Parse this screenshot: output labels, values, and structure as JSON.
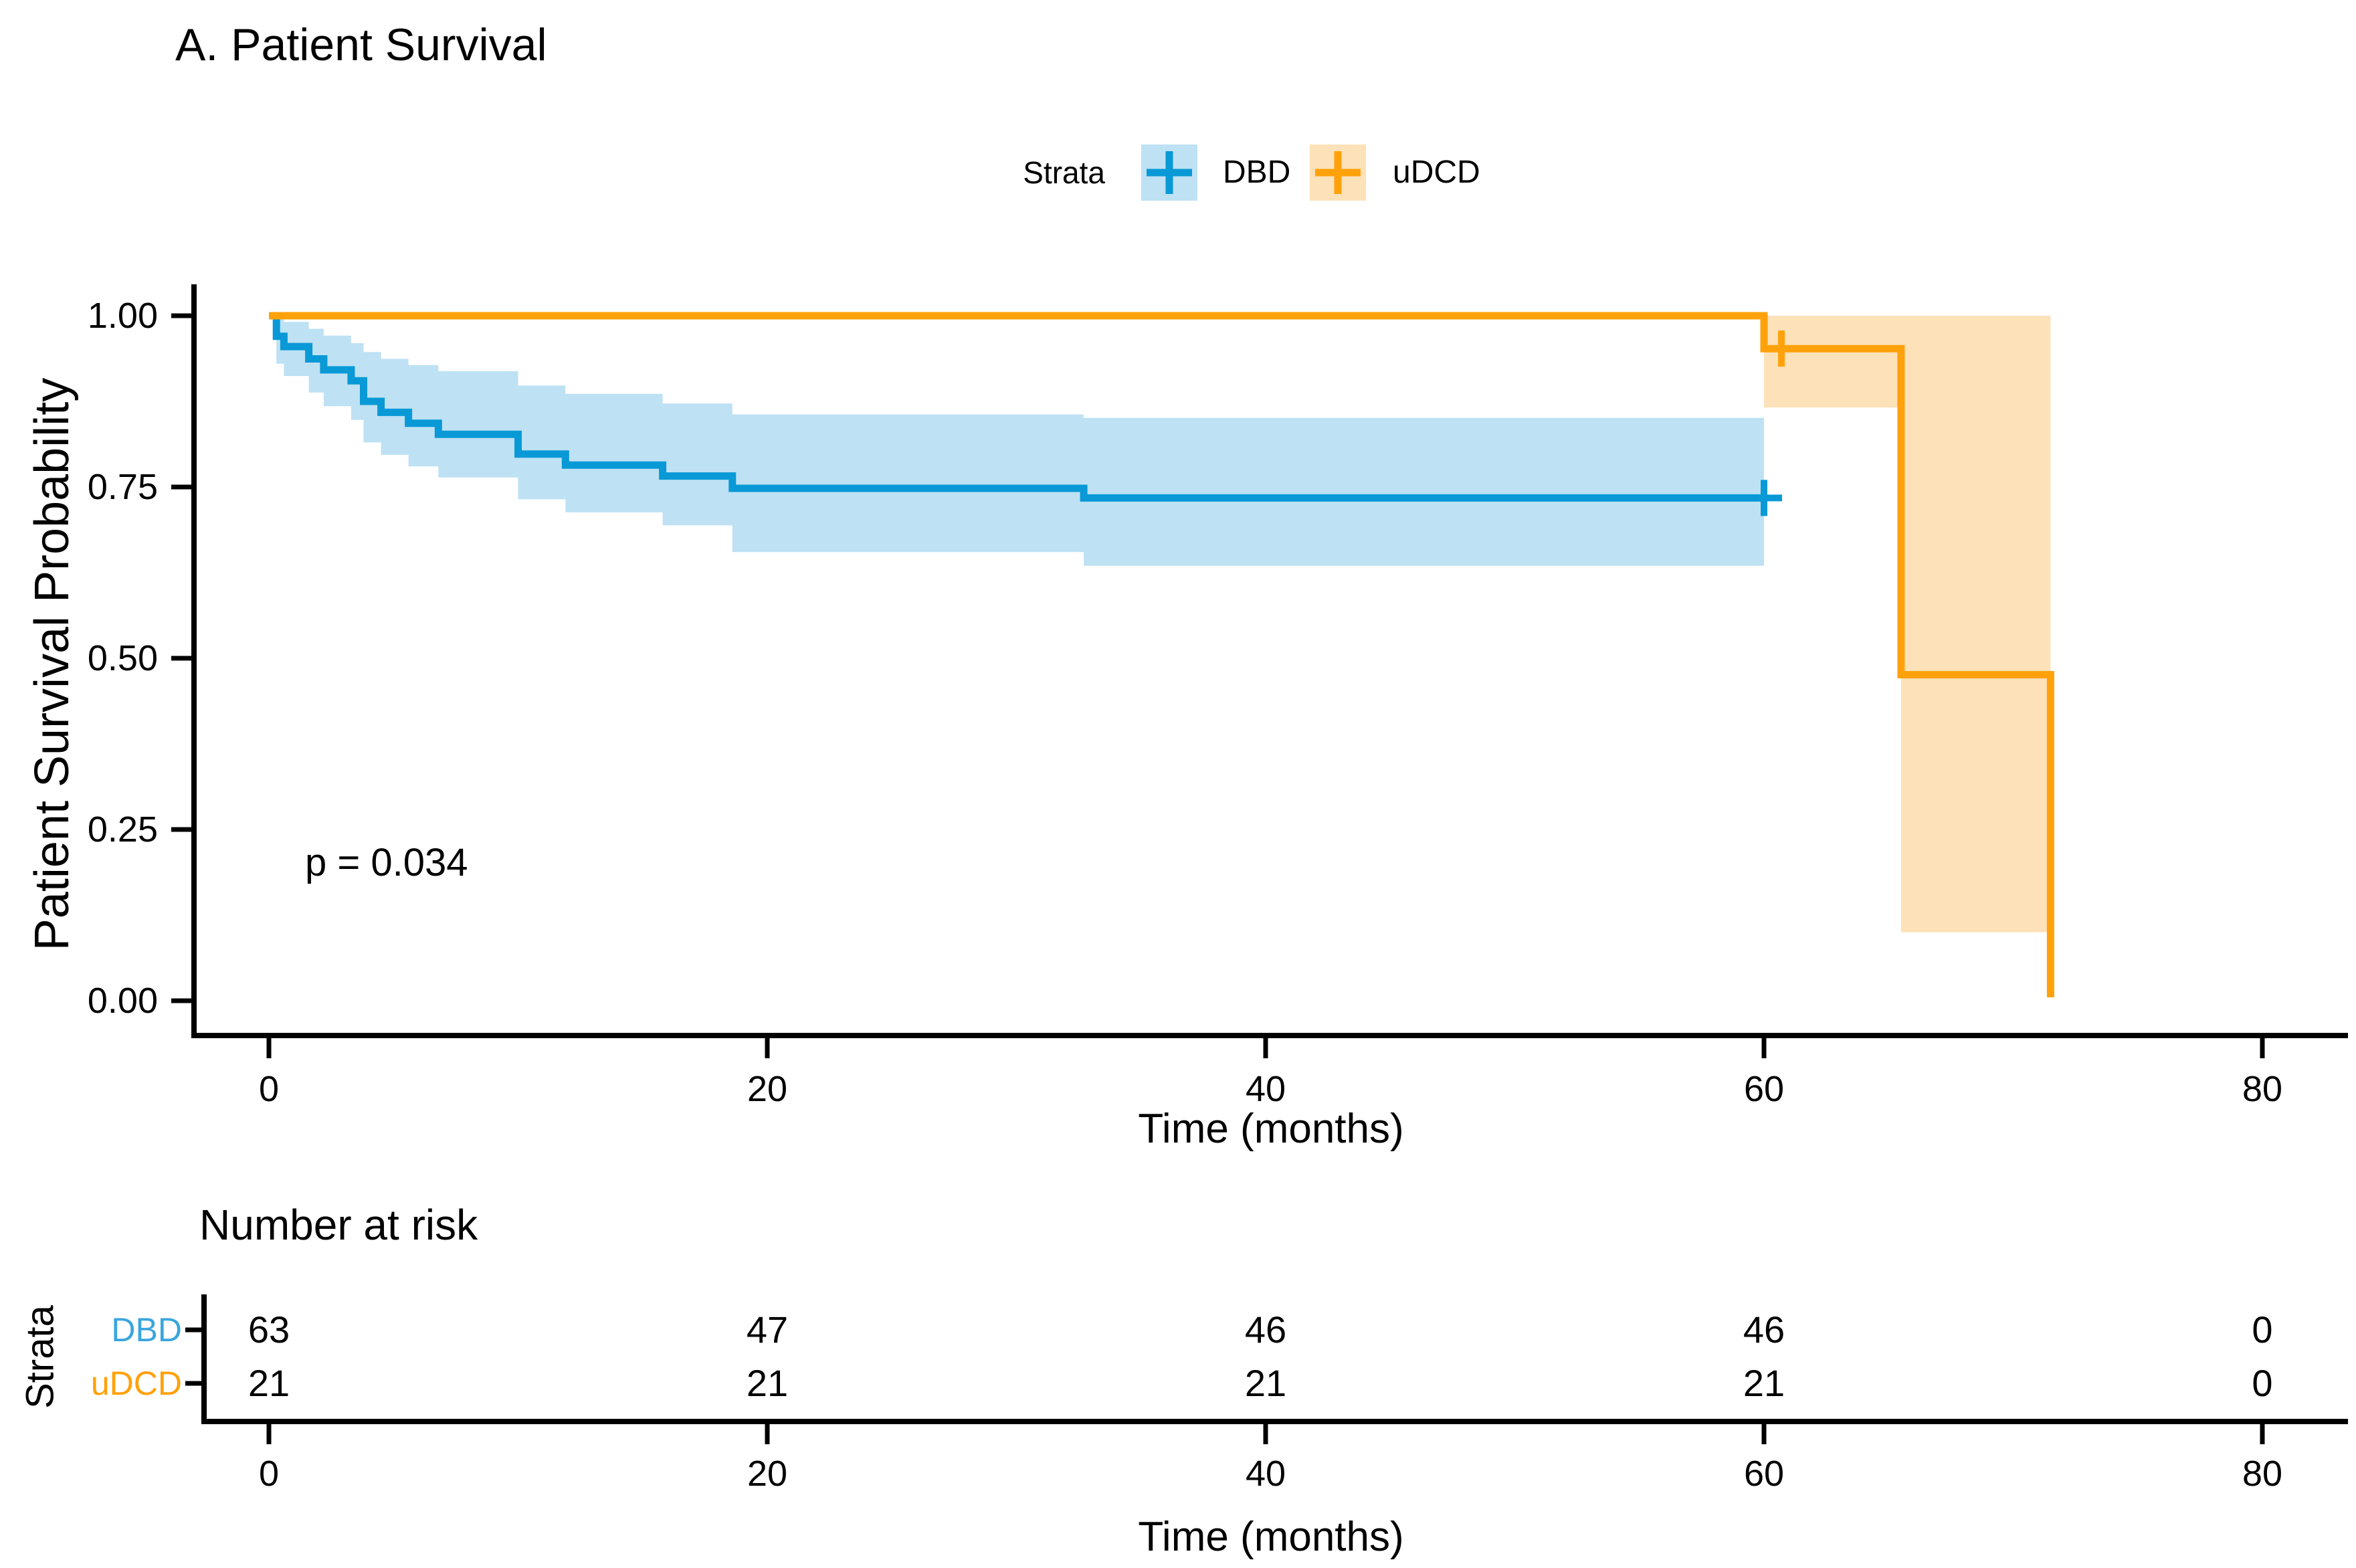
{
  "title": "A. Patient Survival",
  "legend": {
    "title": "Strata",
    "items": [
      {
        "label": "DBD",
        "line_color": "#0899D6",
        "fill_color": "#BEE1F4"
      },
      {
        "label": "uDCD",
        "line_color": "#FFA10A",
        "fill_color": "#FDE1B8"
      }
    ]
  },
  "main_plot": {
    "ylabel": "Patient Survival Probability",
    "xlabel": "Time (months)",
    "pvalue": "p = 0.034",
    "yticks": [
      {
        "label": "1.00",
        "value": 1.0
      },
      {
        "label": "0.75",
        "value": 0.75
      },
      {
        "label": "0.50",
        "value": 0.5
      },
      {
        "label": "0.25",
        "value": 0.25
      },
      {
        "label": "0.00",
        "value": 0.0
      }
    ],
    "xticks": [
      {
        "label": "0",
        "value": 0
      },
      {
        "label": "20",
        "value": 20
      },
      {
        "label": "40",
        "value": 40
      },
      {
        "label": "60",
        "value": 60
      },
      {
        "label": "80",
        "value": 80
      }
    ]
  },
  "risk_table": {
    "title": "Number at risk",
    "axis_label": "Strata",
    "xlabel": "Time (months)",
    "xticks": [
      {
        "label": "0",
        "value": 0
      },
      {
        "label": "20",
        "value": 20
      },
      {
        "label": "40",
        "value": 40
      },
      {
        "label": "60",
        "value": 60
      },
      {
        "label": "80",
        "value": 80
      }
    ],
    "rows": [
      {
        "label": "DBD",
        "color": "#3AA5DE",
        "counts": [
          "63",
          "47",
          "46",
          "46",
          "0"
        ]
      },
      {
        "label": "uDCD",
        "color": "#FFA10A",
        "counts": [
          "21",
          "21",
          "21",
          "21",
          "0"
        ]
      }
    ]
  },
  "chart_data": {
    "type": "line",
    "subtype": "kaplan-meier-step",
    "title": "A. Patient Survival",
    "xlabel": "Time (months)",
    "ylabel": "Patient Survival Probability",
    "xlim": [
      0,
      80
    ],
    "ylim": [
      0.0,
      1.0
    ],
    "xticks": [
      0,
      20,
      40,
      60,
      80
    ],
    "yticks": [
      1.0,
      0.75,
      0.5,
      0.25,
      0.0
    ],
    "grid": false,
    "legend_position": "top",
    "legend_title": "Strata",
    "pvalue_annotation": "p = 0.034",
    "series": [
      {
        "name": "DBD",
        "line_color": "#0899D6",
        "ci_color": "#BEE1F4",
        "steps": [
          [
            0,
            1.0
          ],
          [
            0.3,
            0.97
          ],
          [
            0.6,
            0.955
          ],
          [
            1.6,
            0.937
          ],
          [
            2.2,
            0.921
          ],
          [
            3.3,
            0.905
          ],
          [
            3.8,
            0.875
          ],
          [
            4.5,
            0.859
          ],
          [
            5.6,
            0.843
          ],
          [
            6.8,
            0.827
          ],
          [
            10.0,
            0.798
          ],
          [
            11.9,
            0.782
          ],
          [
            15.8,
            0.766
          ],
          [
            18.6,
            0.748
          ],
          [
            32.7,
            0.734
          ]
        ],
        "end_time": 60,
        "censor_marks": [
          [
            60,
            0.734
          ]
        ],
        "ci_upper": [
          [
            0,
            1.0
          ],
          [
            0.3,
            0.997
          ],
          [
            0.6,
            0.991
          ],
          [
            1.6,
            0.981
          ],
          [
            2.2,
            0.971
          ],
          [
            3.3,
            0.96
          ],
          [
            3.8,
            0.947
          ],
          [
            4.5,
            0.937
          ],
          [
            5.6,
            0.928
          ],
          [
            6.8,
            0.919
          ],
          [
            10.0,
            0.898
          ],
          [
            11.9,
            0.886
          ],
          [
            15.8,
            0.872
          ],
          [
            18.6,
            0.856
          ],
          [
            32.7,
            0.851
          ]
        ],
        "ci_lower": [
          [
            0,
            1.0
          ],
          [
            0.3,
            0.93
          ],
          [
            0.6,
            0.912
          ],
          [
            1.6,
            0.888
          ],
          [
            2.2,
            0.868
          ],
          [
            3.3,
            0.848
          ],
          [
            3.8,
            0.815
          ],
          [
            4.5,
            0.797
          ],
          [
            5.6,
            0.78
          ],
          [
            6.8,
            0.764
          ],
          [
            10.0,
            0.732
          ],
          [
            11.9,
            0.713
          ],
          [
            15.8,
            0.694
          ],
          [
            18.6,
            0.655
          ],
          [
            32.7,
            0.635
          ]
        ],
        "ci_end_time": 60
      },
      {
        "name": "uDCD",
        "line_color": "#FFA10A",
        "ci_color": "#FDE1B8",
        "steps": [
          [
            0,
            1.0
          ],
          [
            60,
            0.952
          ],
          [
            65.5,
            0.476
          ],
          [
            71.5,
            0.005
          ]
        ],
        "end_time": null,
        "censor_marks": [
          [
            60.7,
            0.952
          ]
        ],
        "ci_upper": [
          [
            60,
            1.0
          ]
        ],
        "ci_lower": [
          [
            60,
            0.866
          ],
          [
            65.5,
            0.1
          ]
        ],
        "ci_end_time": 71.5
      }
    ],
    "risk_table": {
      "title": "Number at risk",
      "time_points": [
        0,
        20,
        40,
        60,
        80
      ],
      "rows": [
        {
          "name": "DBD",
          "at_risk": [
            63,
            47,
            46,
            46,
            0
          ]
        },
        {
          "name": "uDCD",
          "at_risk": [
            21,
            21,
            21,
            21,
            0
          ]
        }
      ]
    }
  }
}
